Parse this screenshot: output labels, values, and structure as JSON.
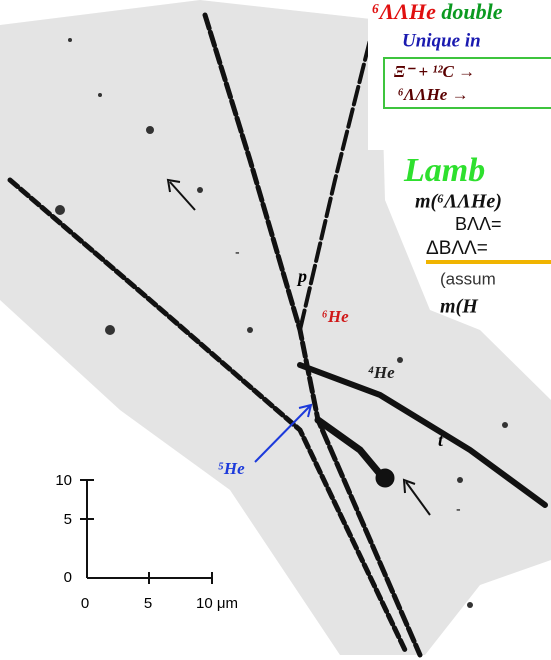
{
  "header": {
    "title_nucleus": "⁶ΛΛHe",
    "title_text": " double",
    "subtitle": "Unique in"
  },
  "box": {
    "line1": "Ξ⁻ + ¹²C →",
    "line2": "⁶ΛΛHe   →"
  },
  "panel": {
    "heading": "Lamb",
    "mass": "m(⁶ΛΛHe)",
    "binding": "BΛΛ=",
    "delta_binding": "ΔBΛΛ=",
    "assumption": "(assum",
    "h_mass": "m(H"
  },
  "track_labels": [
    "p",
    "⁶He",
    "⁴He",
    "⁵He",
    "t",
    "-",
    "-"
  ],
  "scale": {
    "y_labels": [
      "10",
      "5",
      "0"
    ],
    "x_labels": [
      "0",
      "5",
      "10 μm"
    ]
  }
}
